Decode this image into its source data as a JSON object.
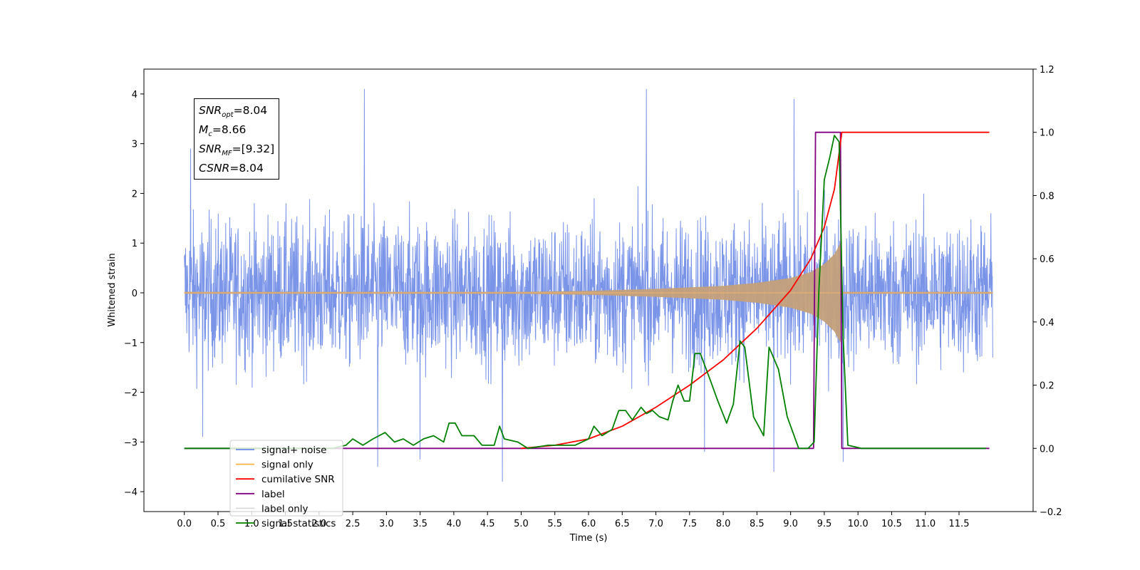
{
  "chart_data": {
    "type": "line",
    "xlabel": "Time (s)",
    "ylabel": "Whitened strain",
    "xlim": [
      -0.6,
      12.6
    ],
    "ylim": [
      -4.4,
      4.5
    ],
    "y2lim": [
      -0.2,
      1.2
    ],
    "x_ticks": [
      "0.0",
      "0.5",
      "1.0",
      "1.5",
      "2.0",
      "2.5",
      "3.0",
      "3.5",
      "4.0",
      "4.5",
      "5.0",
      "5.5",
      "6.0",
      "6.5",
      "7.0",
      "7.5",
      "8.0",
      "8.5",
      "9.0",
      "9.5",
      "10.0",
      "10.5",
      "11.0",
      "11.5"
    ],
    "y_ticks": [
      "4",
      "3",
      "2",
      "1",
      "0",
      "−1",
      "−2",
      "−3",
      "−4"
    ],
    "y2_ticks": [
      "1.2",
      "1.0",
      "0.8",
      "0.6",
      "0.4",
      "0.2",
      "0.0",
      "−0.2"
    ],
    "legend_placement": "lower-left",
    "series": [
      {
        "name": "signal+ noise",
        "axis": "left",
        "color": "#6b88e6",
        "description_of_noise_envelope": {
          "typical_amplitude": 1.2,
          "peak_positive": 4.1,
          "peak_negative": -3.8
        },
        "peaks": [
          {
            "x": 0.09,
            "y": 2.9
          },
          {
            "x": 0.27,
            "y": -2.9
          },
          {
            "x": 2.67,
            "y": 4.1
          },
          {
            "x": 2.87,
            "y": -3.5
          },
          {
            "x": 3.5,
            "y": -3.35
          },
          {
            "x": 4.72,
            "y": -3.8
          },
          {
            "x": 6.86,
            "y": 4.1
          },
          {
            "x": 7.72,
            "y": -3.2
          },
          {
            "x": 8.75,
            "y": -3.6
          },
          {
            "x": 9.05,
            "y": 3.9
          },
          {
            "x": 9.78,
            "y": -3.4
          }
        ]
      },
      {
        "name": "signal only",
        "axis": "left",
        "color": "#ffb347",
        "envelope": [
          {
            "x": 0.0,
            "y": 0.02
          },
          {
            "x": 5.0,
            "y": 0.02
          },
          {
            "x": 6.0,
            "y": 0.04
          },
          {
            "x": 7.0,
            "y": 0.08
          },
          {
            "x": 8.0,
            "y": 0.14
          },
          {
            "x": 8.5,
            "y": 0.2
          },
          {
            "x": 9.0,
            "y": 0.3
          },
          {
            "x": 9.3,
            "y": 0.42
          },
          {
            "x": 9.5,
            "y": 0.58
          },
          {
            "x": 9.65,
            "y": 0.78
          },
          {
            "x": 9.74,
            "y": 1.0
          },
          {
            "x": 9.77,
            "y": 0.02
          },
          {
            "x": 12.0,
            "y": 0.02
          }
        ]
      },
      {
        "name": "cumilative SNR",
        "axis": "right",
        "color": "#ff0000",
        "points": [
          {
            "x": 5.0,
            "y": 0.0
          },
          {
            "x": 5.5,
            "y": 0.01
          },
          {
            "x": 6.0,
            "y": 0.03
          },
          {
            "x": 6.5,
            "y": 0.07
          },
          {
            "x": 7.0,
            "y": 0.13
          },
          {
            "x": 7.5,
            "y": 0.2
          },
          {
            "x": 8.0,
            "y": 0.28
          },
          {
            "x": 8.5,
            "y": 0.38
          },
          {
            "x": 9.0,
            "y": 0.5
          },
          {
            "x": 9.3,
            "y": 0.6
          },
          {
            "x": 9.5,
            "y": 0.7
          },
          {
            "x": 9.65,
            "y": 0.82
          },
          {
            "x": 9.76,
            "y": 1.0
          },
          {
            "x": 11.95,
            "y": 1.0
          }
        ]
      },
      {
        "name": "label",
        "axis": "right",
        "color": "#800080",
        "points": [
          {
            "x": 0.0,
            "y": 0.0
          },
          {
            "x": 9.34,
            "y": 0.0
          },
          {
            "x": 9.37,
            "y": 1.0
          },
          {
            "x": 9.74,
            "y": 1.0
          },
          {
            "x": 9.76,
            "y": 0.0
          },
          {
            "x": 11.95,
            "y": 0.0
          }
        ]
      },
      {
        "name": "label only",
        "axis": "right",
        "color": "#d9d9d9",
        "points": []
      },
      {
        "name": "signal statistics",
        "axis": "right",
        "color": "#008000",
        "points": [
          {
            "x": 0.0,
            "y": 0.0
          },
          {
            "x": 2.2,
            "y": 0.0
          },
          {
            "x": 2.4,
            "y": 0.01
          },
          {
            "x": 2.5,
            "y": 0.03
          },
          {
            "x": 2.65,
            "y": 0.01
          },
          {
            "x": 2.8,
            "y": 0.03
          },
          {
            "x": 2.98,
            "y": 0.05
          },
          {
            "x": 3.12,
            "y": 0.02
          },
          {
            "x": 3.25,
            "y": 0.03
          },
          {
            "x": 3.4,
            "y": 0.01
          },
          {
            "x": 3.55,
            "y": 0.03
          },
          {
            "x": 3.7,
            "y": 0.04
          },
          {
            "x": 3.85,
            "y": 0.02
          },
          {
            "x": 3.93,
            "y": 0.08
          },
          {
            "x": 4.02,
            "y": 0.08
          },
          {
            "x": 4.12,
            "y": 0.04
          },
          {
            "x": 4.3,
            "y": 0.04
          },
          {
            "x": 4.42,
            "y": 0.01
          },
          {
            "x": 4.6,
            "y": 0.01
          },
          {
            "x": 4.68,
            "y": 0.07
          },
          {
            "x": 4.75,
            "y": 0.03
          },
          {
            "x": 4.95,
            "y": 0.02
          },
          {
            "x": 5.1,
            "y": 0.0
          },
          {
            "x": 5.4,
            "y": 0.01
          },
          {
            "x": 5.8,
            "y": 0.01
          },
          {
            "x": 6.0,
            "y": 0.03
          },
          {
            "x": 6.08,
            "y": 0.07
          },
          {
            "x": 6.2,
            "y": 0.04
          },
          {
            "x": 6.35,
            "y": 0.06
          },
          {
            "x": 6.45,
            "y": 0.12
          },
          {
            "x": 6.55,
            "y": 0.12
          },
          {
            "x": 6.65,
            "y": 0.09
          },
          {
            "x": 6.78,
            "y": 0.13
          },
          {
            "x": 6.86,
            "y": 0.11
          },
          {
            "x": 6.95,
            "y": 0.12
          },
          {
            "x": 7.05,
            "y": 0.1
          },
          {
            "x": 7.18,
            "y": 0.09
          },
          {
            "x": 7.25,
            "y": 0.15
          },
          {
            "x": 7.33,
            "y": 0.2
          },
          {
            "x": 7.42,
            "y": 0.15
          },
          {
            "x": 7.5,
            "y": 0.15
          },
          {
            "x": 7.58,
            "y": 0.3
          },
          {
            "x": 7.66,
            "y": 0.3
          },
          {
            "x": 7.8,
            "y": 0.22
          },
          {
            "x": 7.92,
            "y": 0.15
          },
          {
            "x": 8.05,
            "y": 0.08
          },
          {
            "x": 8.15,
            "y": 0.14
          },
          {
            "x": 8.25,
            "y": 0.34
          },
          {
            "x": 8.32,
            "y": 0.32
          },
          {
            "x": 8.45,
            "y": 0.1
          },
          {
            "x": 8.6,
            "y": 0.04
          },
          {
            "x": 8.68,
            "y": 0.32
          },
          {
            "x": 8.82,
            "y": 0.25
          },
          {
            "x": 8.95,
            "y": 0.1
          },
          {
            "x": 9.12,
            "y": 0.0
          },
          {
            "x": 9.26,
            "y": 0.0
          },
          {
            "x": 9.35,
            "y": 0.02
          },
          {
            "x": 9.42,
            "y": 0.5
          },
          {
            "x": 9.5,
            "y": 0.85
          },
          {
            "x": 9.58,
            "y": 0.92
          },
          {
            "x": 9.65,
            "y": 0.99
          },
          {
            "x": 9.72,
            "y": 0.97
          },
          {
            "x": 9.78,
            "y": 0.35
          },
          {
            "x": 9.85,
            "y": 0.01
          },
          {
            "x": 10.05,
            "y": 0.0
          },
          {
            "x": 11.9,
            "y": 0.0
          }
        ]
      }
    ],
    "annotations": {
      "snr_opt": "=8.04",
      "mc": "=8.66",
      "snr_mf": "=[9.32]",
      "csnr": "=8.04"
    }
  },
  "stats_box": {
    "snr_opt_sym": "SNR",
    "snr_opt_sub": "opt",
    "snr_opt_val": "=8.04",
    "mc_sym": "M",
    "mc_sub": "c",
    "mc_val": "=8.66",
    "snr_mf_sym": "SNR",
    "snr_mf_sub": "MF",
    "snr_mf_val": "=[9.32]",
    "csnr_sym": "CSNR",
    "csnr_val": "=8.04"
  }
}
